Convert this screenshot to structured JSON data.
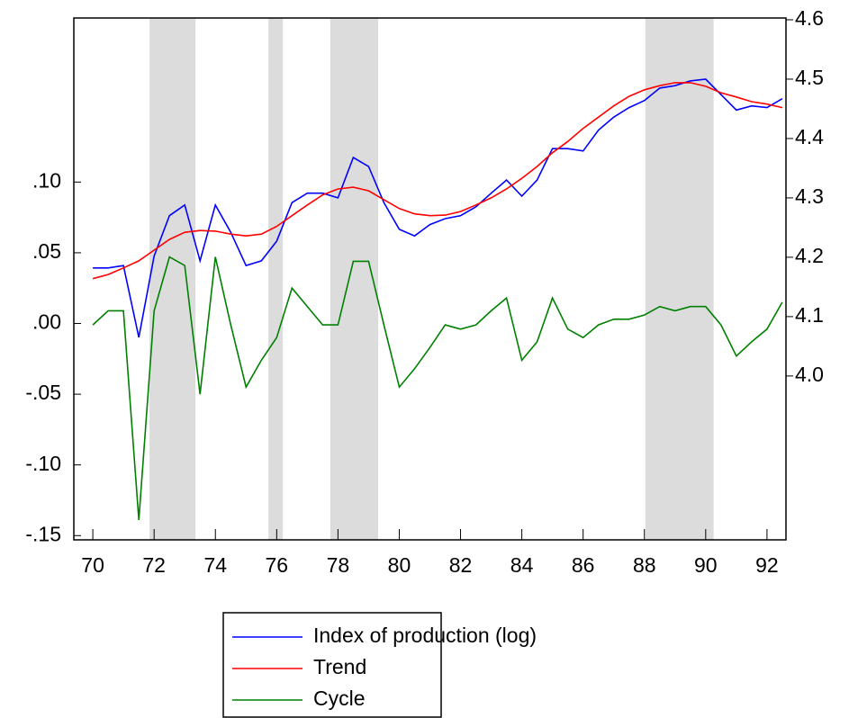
{
  "chart_data": {
    "type": "line",
    "x": [
      70,
      70.5,
      71,
      71.5,
      72,
      72.5,
      73,
      73.5,
      74,
      74.5,
      75,
      75.5,
      76,
      76.5,
      77,
      77.5,
      78,
      78.5,
      79,
      79.5,
      80,
      80.5,
      81,
      81.5,
      82,
      82.5,
      83,
      83.5,
      84,
      84.5,
      85,
      85.5,
      86,
      86.5,
      87,
      87.5,
      88,
      88.5,
      89,
      89.5,
      90,
      90.5,
      91,
      91.5,
      92,
      92.5
    ],
    "series": [
      {
        "name": "Index of production (log)",
        "color": "#0000ff",
        "axis": "y2",
        "values": [
          4.182,
          4.182,
          4.186,
          4.065,
          4.202,
          4.27,
          4.288,
          4.194,
          4.288,
          4.242,
          4.186,
          4.194,
          4.227,
          4.292,
          4.308,
          4.308,
          4.3,
          4.368,
          4.353,
          4.292,
          4.247,
          4.236,
          4.255,
          4.265,
          4.27,
          4.285,
          4.308,
          4.33,
          4.303,
          4.33,
          4.383,
          4.383,
          4.379,
          4.414,
          4.436,
          4.452,
          4.464,
          4.485,
          4.489,
          4.497,
          4.5,
          4.474,
          4.448,
          4.455,
          4.452,
          4.467
        ]
      },
      {
        "name": "Trend",
        "color": "#ff0000",
        "axis": "y2",
        "values": [
          4.164,
          4.171,
          4.182,
          4.194,
          4.212,
          4.23,
          4.242,
          4.245,
          4.244,
          4.239,
          4.236,
          4.239,
          4.252,
          4.27,
          4.288,
          4.305,
          4.315,
          4.318,
          4.312,
          4.297,
          4.282,
          4.273,
          4.27,
          4.271,
          4.277,
          4.288,
          4.3,
          4.315,
          4.333,
          4.353,
          4.376,
          4.395,
          4.417,
          4.436,
          4.455,
          4.471,
          4.482,
          4.489,
          4.494,
          4.494,
          4.488,
          4.477,
          4.47,
          4.462,
          4.458,
          4.452
        ]
      },
      {
        "name": "Cycle",
        "color": "#008000",
        "values": [
          -0.001,
          0.009,
          0.009,
          -0.139,
          0.009,
          0.047,
          0.041,
          -0.05,
          0.047,
          -0.001,
          -0.045,
          -0.026,
          -0.01,
          0.025,
          0.012,
          -0.001,
          -0.001,
          0.044,
          0.044,
          -0.001,
          -0.045,
          -0.032,
          -0.017,
          -0.001,
          -0.004,
          -0.001,
          0.009,
          0.018,
          -0.026,
          -0.013,
          0.018,
          -0.004,
          -0.01,
          -0.001,
          0.003,
          0.003,
          0.006,
          0.012,
          0.009,
          0.012,
          0.012,
          -0.001,
          -0.023,
          -0.013,
          -0.004,
          0.015
        ]
      }
    ],
    "xlim": [
      69.38,
      92.62
    ],
    "xticks": [
      70,
      72,
      74,
      76,
      78,
      80,
      82,
      84,
      86,
      88,
      90,
      92
    ],
    "ylim": [
      -0.153,
      0.216
    ],
    "yticks": [
      {
        "value": -0.15,
        "label": "-.15"
      },
      {
        "value": -0.1,
        "label": "-.10"
      },
      {
        "value": -0.05,
        "label": "-.05"
      },
      {
        "value": 0,
        "label": ".00"
      },
      {
        "value": 0.05,
        "label": ".05"
      },
      {
        "value": 0.1,
        "label": ".10"
      }
    ],
    "y2lim": [
      3.724,
      4.603
    ],
    "y2ticks": [
      {
        "value": 4,
        "label": "4.0"
      },
      4.1,
      4.2,
      4.3,
      4.4,
      4.5,
      4.6
    ],
    "shaded_ranges": [
      [
        71.85,
        73.35
      ],
      [
        75.73,
        76.2
      ],
      [
        77.75,
        79.31
      ],
      [
        88.03,
        90.26
      ]
    ],
    "shade_color": "#dcdcdc",
    "grid": false,
    "legend": "bottom"
  }
}
